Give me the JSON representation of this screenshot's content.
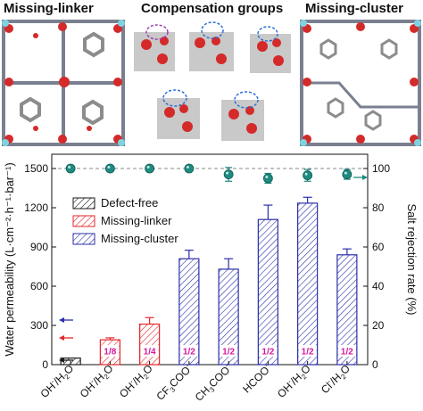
{
  "panels": {
    "left_title": "Missing-linker",
    "middle_title": "Compensation groups",
    "right_title": "Missing-cluster"
  },
  "chart_data": {
    "type": "bar",
    "categories": [
      {
        "main": "OH",
        "sup": "-",
        "rest": "/H",
        "sub": "2",
        "tail": "O"
      },
      {
        "main": "OH",
        "sup": "-",
        "rest": "/H",
        "sub": "2",
        "tail": "O"
      },
      {
        "main": "OH",
        "sup": "-",
        "rest": "/H",
        "sub": "2",
        "tail": "O"
      },
      {
        "main": "CF",
        "sub0": "3",
        "rest": "COO",
        "sup": "-",
        "tail": ""
      },
      {
        "main": "CH",
        "sub0": "3",
        "rest": "COO",
        "sup": "-",
        "tail": ""
      },
      {
        "main": "HCOO",
        "sup": "-",
        "rest": "",
        "tail": ""
      },
      {
        "main": "OH",
        "sup": "-",
        "rest": "/H",
        "sub": "2",
        "tail": "O"
      },
      {
        "main": "Cl",
        "sup": "-",
        "rest": "/H",
        "sub": "2",
        "tail": "O"
      }
    ],
    "series": [
      {
        "name": "Defect-free",
        "color": "#1a1a1a",
        "indices": [
          0
        ]
      },
      {
        "name": "Missing-linker",
        "color": "#e4252a",
        "indices": [
          1,
          2
        ]
      },
      {
        "name": "Missing-cluster",
        "color": "#2b2fa8",
        "indices": [
          3,
          4,
          5,
          6,
          7
        ]
      }
    ],
    "values": [
      50,
      190,
      310,
      810,
      730,
      1110,
      1235,
      840
    ],
    "errors": [
      0,
      15,
      50,
      65,
      80,
      110,
      45,
      45
    ],
    "fractions": [
      "",
      "1/8",
      "1/4",
      "1/2",
      "1/2",
      "1/2",
      "1/2",
      "1/2"
    ],
    "rejection": [
      100,
      100,
      100,
      100,
      97,
      95,
      96.5,
      97
    ],
    "rejection_errors": [
      0,
      0,
      0,
      0,
      3.5,
      2.5,
      3,
      2.5
    ],
    "rejection_color": "#1f8a80",
    "ylabel_left": "Water permeability (L·cm⁻²·h⁻¹·bar⁻¹)",
    "ylabel_right": "Salt rejection rate (%)",
    "ylim_left": [
      0,
      1500
    ],
    "ylim_right": [
      0,
      100
    ],
    "yticks_left": [
      "0",
      "300",
      "600",
      "900",
      "1200",
      "1500"
    ],
    "yticks_right": [
      "0",
      "20",
      "40",
      "60",
      "80",
      "100"
    ],
    "reference_line": 100,
    "legend_position": "top-left"
  }
}
